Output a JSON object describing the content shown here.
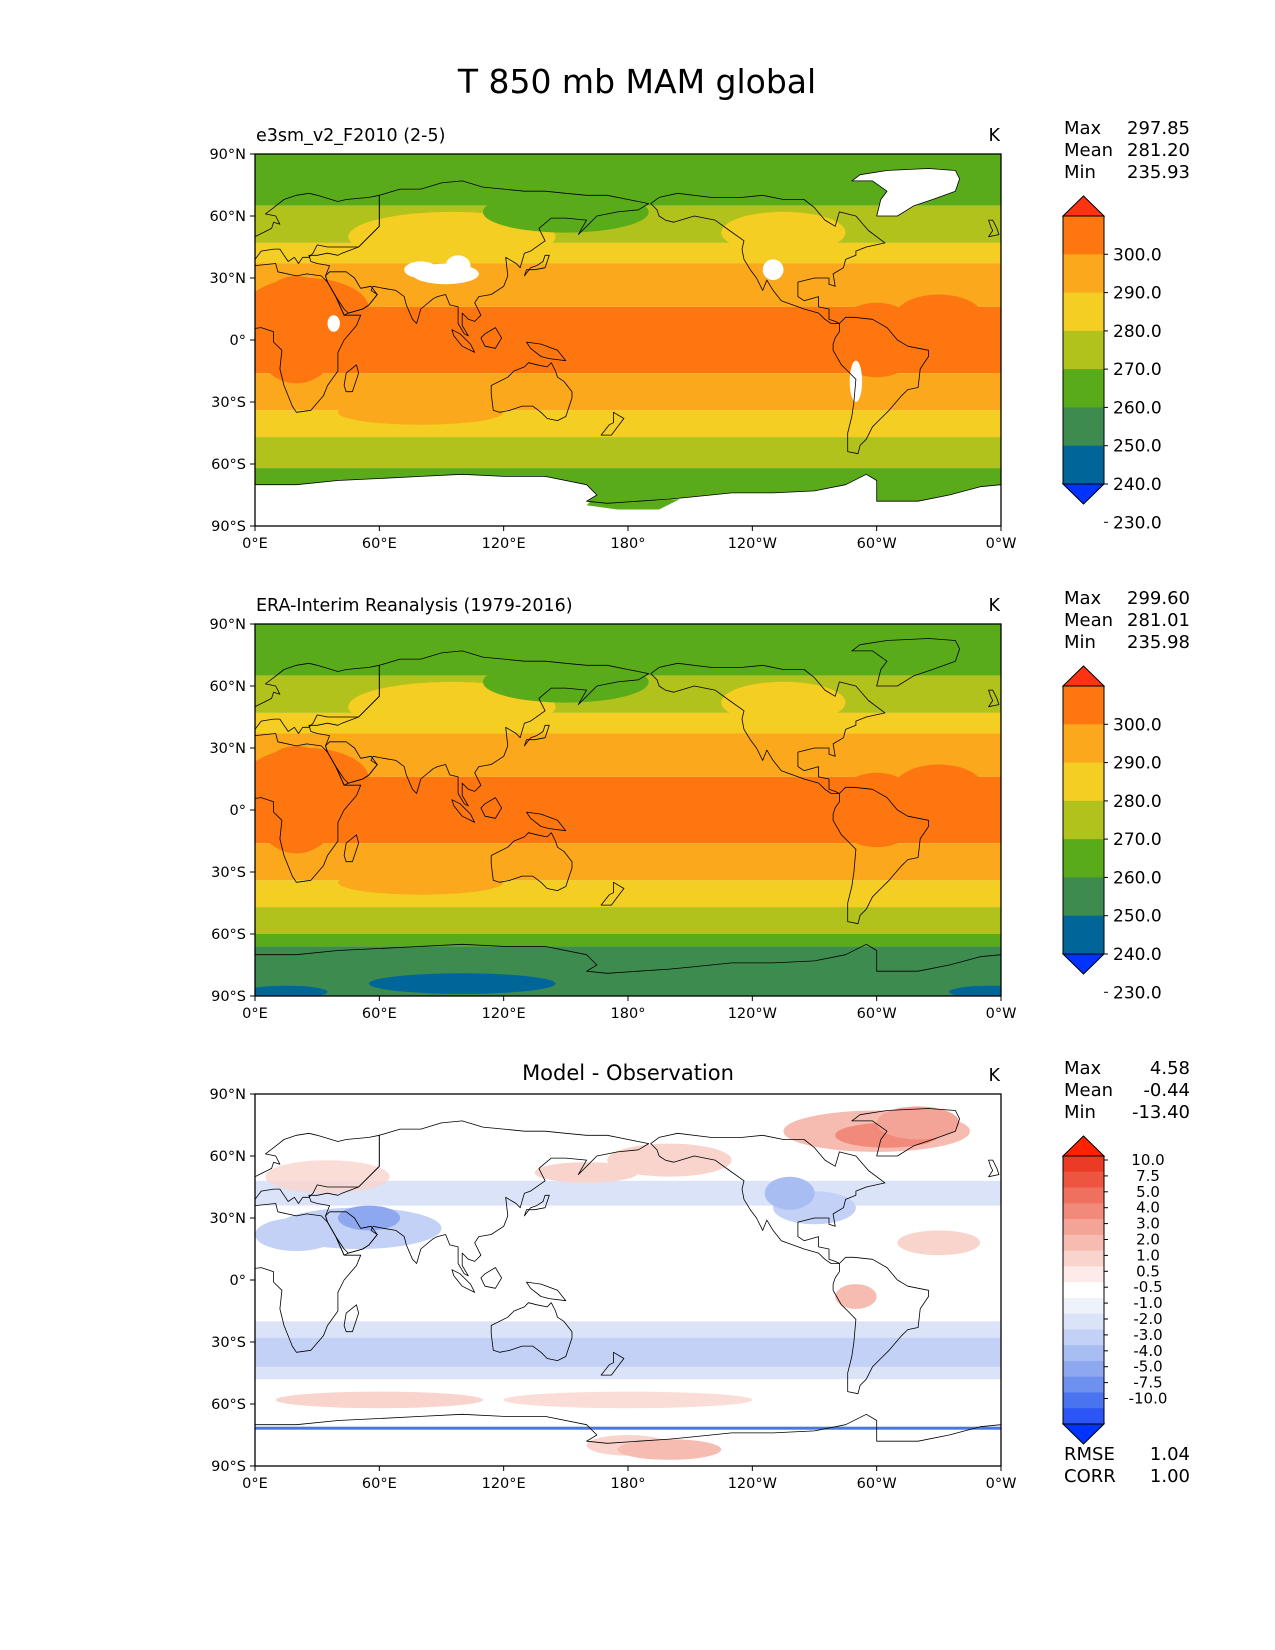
{
  "figure_title": "T 850 mb MAM global",
  "axes": {
    "lat_ticks": [
      "90°N",
      "60°N",
      "30°N",
      "0°",
      "30°S",
      "60°S",
      "90°S"
    ],
    "lon_ticks": [
      "0°E",
      "60°E",
      "120°E",
      "180°",
      "120°W",
      "60°W",
      "0°W"
    ]
  },
  "colors": {
    "temperature_levels": [
      "#0033ff",
      "#006699",
      "#3d8b4f",
      "#5aab1a",
      "#b1c21c",
      "#f4ce22",
      "#fba81c",
      "#fd7610",
      "#ff3311"
    ],
    "difference_levels": [
      "#0033ff",
      "#2b55f5",
      "#4a74ef",
      "#6e90ee",
      "#8da8ef",
      "#a8bdf2",
      "#c3d1f6",
      "#dbe3f8",
      "#eef2fb",
      "#ffffff",
      "#fcebe8",
      "#f9d4cd",
      "#f6bcb2",
      "#f4a496",
      "#f18a7a",
      "#ef705e",
      "#ee5541",
      "#ec3b24",
      "#ff2200"
    ],
    "coastline": "#000000",
    "missing": "#ffffff"
  },
  "panels": [
    {
      "name": "e3sm_v2_F2010 (2-5)",
      "units": "K",
      "stats": {
        "max_label": "Max",
        "max": "297.85",
        "mean_label": "Mean",
        "mean": "281.20",
        "min_label": "Min",
        "min": "235.93"
      },
      "colorbar": {
        "levels": [
          "300.0",
          "290.0",
          "280.0",
          "270.0",
          "260.0",
          "250.0",
          "240.0",
          "230.0"
        ]
      }
    },
    {
      "name": "ERA-Interim Reanalysis (1979-2016)",
      "units": "K",
      "stats": {
        "max_label": "Max",
        "max": "299.60",
        "mean_label": "Mean",
        "mean": "281.01",
        "min_label": "Min",
        "min": "235.98"
      },
      "colorbar": {
        "levels": [
          "300.0",
          "290.0",
          "280.0",
          "270.0",
          "260.0",
          "250.0",
          "240.0",
          "230.0"
        ]
      }
    },
    {
      "name": "Model - Observation",
      "units": "K",
      "stats": {
        "max_label": "Max",
        "max": "4.58",
        "mean_label": "Mean",
        "mean": "-0.44",
        "min_label": "Min",
        "min": "-13.40"
      },
      "colorbar": {
        "levels": [
          "10.0",
          "7.5",
          "5.0",
          "4.0",
          "3.0",
          "2.0",
          "1.0",
          "0.5",
          "-0.5",
          "-1.0",
          "-2.0",
          "-3.0",
          "-4.0",
          "-5.0",
          "-7.5",
          "-10.0"
        ]
      },
      "metrics": {
        "rmse_label": "RMSE",
        "rmse": "1.04",
        "corr_label": "CORR",
        "corr": "1.00"
      }
    }
  ],
  "chart_data": [
    {
      "type": "heatmap",
      "title": "e3sm_v2_F2010 (2-5)",
      "units": "K",
      "x": [
        "0°E",
        "60°E",
        "120°E",
        "180°",
        "120°W",
        "60°W",
        "0°W"
      ],
      "y": [
        "90°N",
        "60°N",
        "30°N",
        "0°",
        "30°S",
        "60°S",
        "90°S"
      ],
      "xlim": [
        0,
        360
      ],
      "ylim": [
        -90,
        90
      ],
      "levels": [
        230,
        240,
        250,
        260,
        270,
        280,
        290,
        300
      ],
      "stats": {
        "max": 297.85,
        "mean": 281.2,
        "min": 235.93
      },
      "approx_zonal_band_values": [
        {
          "lat_range": [
            65,
            90
          ],
          "value": 250
        },
        {
          "lat_range": [
            45,
            65
          ],
          "value": 260
        },
        {
          "lat_range": [
            35,
            45
          ],
          "value": 270
        },
        {
          "lat_range": [
            15,
            35
          ],
          "value": 280
        },
        {
          "lat_range": [
            -15,
            15
          ],
          "value": 290
        },
        {
          "lat_range": [
            -35,
            -15
          ],
          "value": 280
        },
        {
          "lat_range": [
            -48,
            -35
          ],
          "value": 270
        },
        {
          "lat_range": [
            -65,
            -48
          ],
          "value": 260
        },
        {
          "lat_range": [
            -90,
            -65
          ],
          "value": 250
        }
      ]
    },
    {
      "type": "heatmap",
      "title": "ERA-Interim Reanalysis (1979-2016)",
      "units": "K",
      "x": [
        "0°E",
        "60°E",
        "120°E",
        "180°",
        "120°W",
        "60°W",
        "0°W"
      ],
      "y": [
        "90°N",
        "60°N",
        "30°N",
        "0°",
        "30°S",
        "60°S",
        "90°S"
      ],
      "xlim": [
        0,
        360
      ],
      "ylim": [
        -90,
        90
      ],
      "levels": [
        230,
        240,
        250,
        260,
        270,
        280,
        290,
        300
      ],
      "stats": {
        "max": 299.6,
        "mean": 281.01,
        "min": 235.98
      },
      "approx_zonal_band_values": [
        {
          "lat_range": [
            65,
            90
          ],
          "value": 250
        },
        {
          "lat_range": [
            45,
            65
          ],
          "value": 260
        },
        {
          "lat_range": [
            35,
            45
          ],
          "value": 270
        },
        {
          "lat_range": [
            15,
            35
          ],
          "value": 280
        },
        {
          "lat_range": [
            -15,
            15
          ],
          "value": 290
        },
        {
          "lat_range": [
            -35,
            -15
          ],
          "value": 280
        },
        {
          "lat_range": [
            -48,
            -35
          ],
          "value": 270
        },
        {
          "lat_range": [
            -65,
            -48
          ],
          "value": 260
        },
        {
          "lat_range": [
            -75,
            -65
          ],
          "value": 250
        },
        {
          "lat_range": [
            -90,
            -75
          ],
          "value": 240
        }
      ]
    },
    {
      "type": "heatmap",
      "title": "Model - Observation",
      "units": "K",
      "x": [
        "0°E",
        "60°E",
        "120°E",
        "180°",
        "120°W",
        "60°W",
        "0°W"
      ],
      "y": [
        "90°N",
        "60°N",
        "30°N",
        "0°",
        "30°S",
        "60°S",
        "90°S"
      ],
      "xlim": [
        0,
        360
      ],
      "ylim": [
        -90,
        90
      ],
      "levels": [
        -10.0,
        -7.5,
        -5.0,
        -4.0,
        -3.0,
        -2.0,
        -1.0,
        -0.5,
        0.5,
        1.0,
        2.0,
        3.0,
        4.0,
        5.0,
        7.5,
        10.0
      ],
      "stats": {
        "max": 4.58,
        "mean": -0.44,
        "min": -13.4
      },
      "metrics": {
        "rmse": 1.04,
        "corr": 1.0
      }
    }
  ]
}
